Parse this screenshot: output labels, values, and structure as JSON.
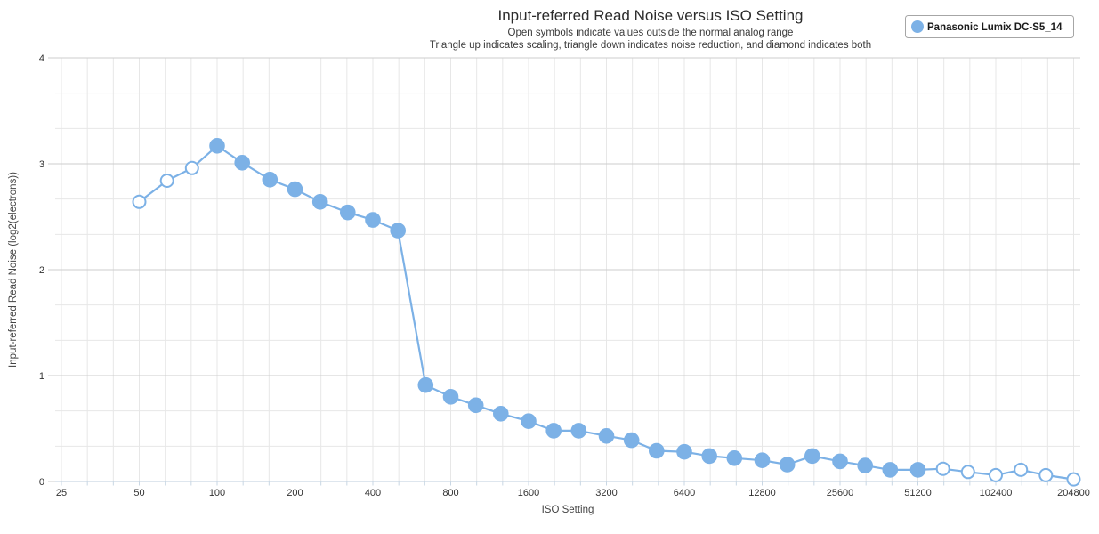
{
  "header": {
    "title": "Input-referred Read Noise versus ISO Setting",
    "subtitle1": "Open symbols indicate values outside the normal analog range",
    "subtitle2": "Triangle up indicates scaling, triangle down indicates noise reduction, and diamond indicates both"
  },
  "legend": {
    "series_label": "Panasonic Lumix DC-S5_14"
  },
  "axes": {
    "x_label": "ISO Setting",
    "y_label": "Input-referred Read Noise (log2(electrons))"
  },
  "colors": {
    "series_blue": "#7cb1e6",
    "open_marker_fill": "#ffffff",
    "grid_minor": "#e7e7e7",
    "grid_major": "#cdcdcd",
    "axis_line": "#c9d7e4",
    "legend_border": "#a6a6a6"
  },
  "chart_data": {
    "type": "line",
    "title": "Input-referred Read Noise versus ISO Setting",
    "xlabel": "ISO Setting",
    "ylabel": "Input-referred Read Noise (log2(electrons))",
    "x_scale": "log2",
    "xlim": [
      25,
      204800
    ],
    "ylim": [
      0,
      4
    ],
    "grid": true,
    "x_minor_gridlines_per_octave": 3,
    "y_minor_gridlines_per_unit": 3,
    "legend_position": "top-right",
    "x_ticks": [
      25,
      50,
      100,
      200,
      400,
      800,
      1600,
      3200,
      6400,
      12800,
      25600,
      51200,
      102400,
      204800
    ],
    "y_ticks": [
      0,
      1,
      2,
      3,
      4
    ],
    "series": [
      {
        "name": "Panasonic Lumix DC-S5_14",
        "marker": "circle",
        "open_symbol_meaning": "value outside the normal analog range",
        "points": [
          {
            "iso": 50,
            "value": 2.64,
            "open": true
          },
          {
            "iso": 64,
            "value": 2.84,
            "open": true
          },
          {
            "iso": 80,
            "value": 2.96,
            "open": true
          },
          {
            "iso": 100,
            "value": 3.17,
            "open": false
          },
          {
            "iso": 125,
            "value": 3.01,
            "open": false
          },
          {
            "iso": 160,
            "value": 2.85,
            "open": false
          },
          {
            "iso": 200,
            "value": 2.76,
            "open": false
          },
          {
            "iso": 250,
            "value": 2.64,
            "open": false
          },
          {
            "iso": 320,
            "value": 2.54,
            "open": false
          },
          {
            "iso": 400,
            "value": 2.47,
            "open": false
          },
          {
            "iso": 500,
            "value": 2.37,
            "open": false
          },
          {
            "iso": 640,
            "value": 0.91,
            "open": false
          },
          {
            "iso": 800,
            "value": 0.8,
            "open": false
          },
          {
            "iso": 1000,
            "value": 0.72,
            "open": false
          },
          {
            "iso": 1250,
            "value": 0.64,
            "open": false
          },
          {
            "iso": 1600,
            "value": 0.57,
            "open": false
          },
          {
            "iso": 2000,
            "value": 0.48,
            "open": false
          },
          {
            "iso": 2500,
            "value": 0.48,
            "open": false
          },
          {
            "iso": 3200,
            "value": 0.43,
            "open": false
          },
          {
            "iso": 4000,
            "value": 0.39,
            "open": false
          },
          {
            "iso": 5000,
            "value": 0.29,
            "open": false
          },
          {
            "iso": 6400,
            "value": 0.28,
            "open": false
          },
          {
            "iso": 8000,
            "value": 0.24,
            "open": false
          },
          {
            "iso": 10000,
            "value": 0.22,
            "open": false
          },
          {
            "iso": 12800,
            "value": 0.2,
            "open": false
          },
          {
            "iso": 16000,
            "value": 0.16,
            "open": false
          },
          {
            "iso": 20000,
            "value": 0.24,
            "open": false
          },
          {
            "iso": 25600,
            "value": 0.19,
            "open": false
          },
          {
            "iso": 32000,
            "value": 0.15,
            "open": false
          },
          {
            "iso": 40000,
            "value": 0.11,
            "open": false
          },
          {
            "iso": 51200,
            "value": 0.11,
            "open": false
          },
          {
            "iso": 64000,
            "value": 0.12,
            "open": true
          },
          {
            "iso": 80000,
            "value": 0.09,
            "open": true
          },
          {
            "iso": 102400,
            "value": 0.06,
            "open": true
          },
          {
            "iso": 128000,
            "value": 0.11,
            "open": true
          },
          {
            "iso": 160000,
            "value": 0.06,
            "open": true
          },
          {
            "iso": 204800,
            "value": 0.02,
            "open": true
          }
        ]
      }
    ]
  }
}
